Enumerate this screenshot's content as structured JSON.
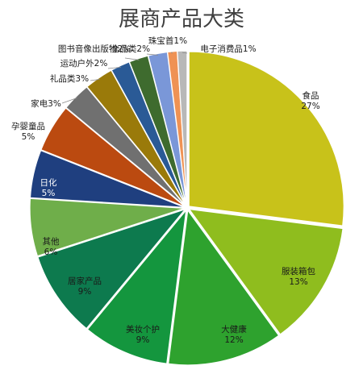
{
  "chart_data": {
    "type": "pie",
    "title": "展商产品大类",
    "slices": [
      {
        "label": "食品",
        "value": 27,
        "pct": "27%",
        "color": "#c8c21a"
      },
      {
        "label": "服装箱包",
        "value": 13,
        "pct": "13%",
        "color": "#8fbd1e"
      },
      {
        "label": "大健康",
        "value": 12,
        "pct": "12%",
        "color": "#2ea22e"
      },
      {
        "label": "美妆个护",
        "value": 9,
        "pct": "9%",
        "color": "#14963e"
      },
      {
        "label": "居家产品",
        "value": 9,
        "pct": "9%",
        "color": "#0d7a4e"
      },
      {
        "label": "其他",
        "value": 6,
        "pct": "6%",
        "color": "#6fae4a"
      },
      {
        "label": "日化",
        "value": 5,
        "pct": "5%",
        "color": "#1f3f7f"
      },
      {
        "label": "孕婴童品",
        "value": 5,
        "pct": "5%",
        "color": "#bb4a10"
      },
      {
        "label": "家电",
        "value": 3,
        "pct": "3%",
        "color": "#707070"
      },
      {
        "label": "礼品类",
        "value": 3,
        "pct": "3%",
        "color": "#9a7a0a"
      },
      {
        "label": "运动户外",
        "value": 2,
        "pct": "2%",
        "color": "#2a5a96"
      },
      {
        "label": "图书音像出版物",
        "value": 2,
        "pct": "2%",
        "color": "#3e6b2e"
      },
      {
        "label": "全品类",
        "value": 2,
        "pct": "2%",
        "color": "#7a97d8"
      },
      {
        "label": "珠宝首",
        "value": 1,
        "pct": "1%",
        "color": "#ef9254"
      },
      {
        "label": "电子消费品",
        "value": 1,
        "pct": "1%",
        "color": "#b8b8b8"
      }
    ]
  }
}
